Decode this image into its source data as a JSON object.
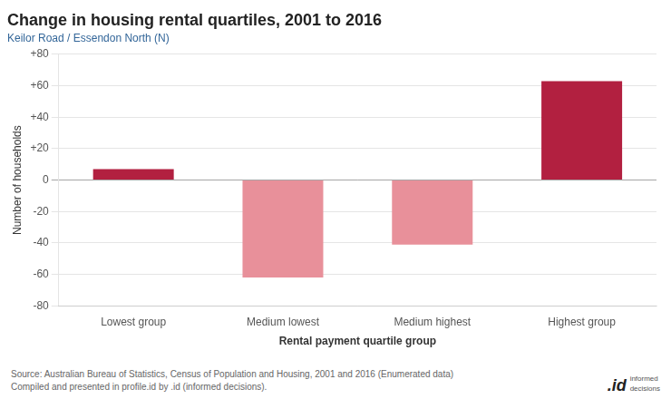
{
  "chart_data": {
    "type": "bar",
    "title": "Change in housing rental quartiles, 2001 to 2016",
    "subtitle": "Keilor Road / Essendon North (N)",
    "categories": [
      "Lowest group",
      "Medium lowest",
      "Medium highest",
      "Highest group"
    ],
    "values": [
      7,
      -62,
      -41,
      63
    ],
    "colors": [
      "#b22040",
      "#e8909a",
      "#e8909a",
      "#b22040"
    ],
    "xlabel": "Rental payment quartile group",
    "ylabel": "Number of households",
    "ylim": [
      -80,
      80
    ],
    "yticks": [
      -80,
      -60,
      -40,
      -20,
      0,
      {
        "value": 20,
        "label": "+20"
      },
      {
        "value": 40,
        "label": "+40"
      },
      {
        "value": 60,
        "label": "+60"
      },
      {
        "value": 80,
        "label": "+80"
      }
    ],
    "grid": true,
    "annotations": [
      "Source: Australian Bureau of Statistics, Census of Population and Housing, 2001 and 2016 (Enumerated data)\nCompiled and presented in profile.id by .id (informed decisions).",
      ".id",
      "informed\ndecisions"
    ]
  }
}
